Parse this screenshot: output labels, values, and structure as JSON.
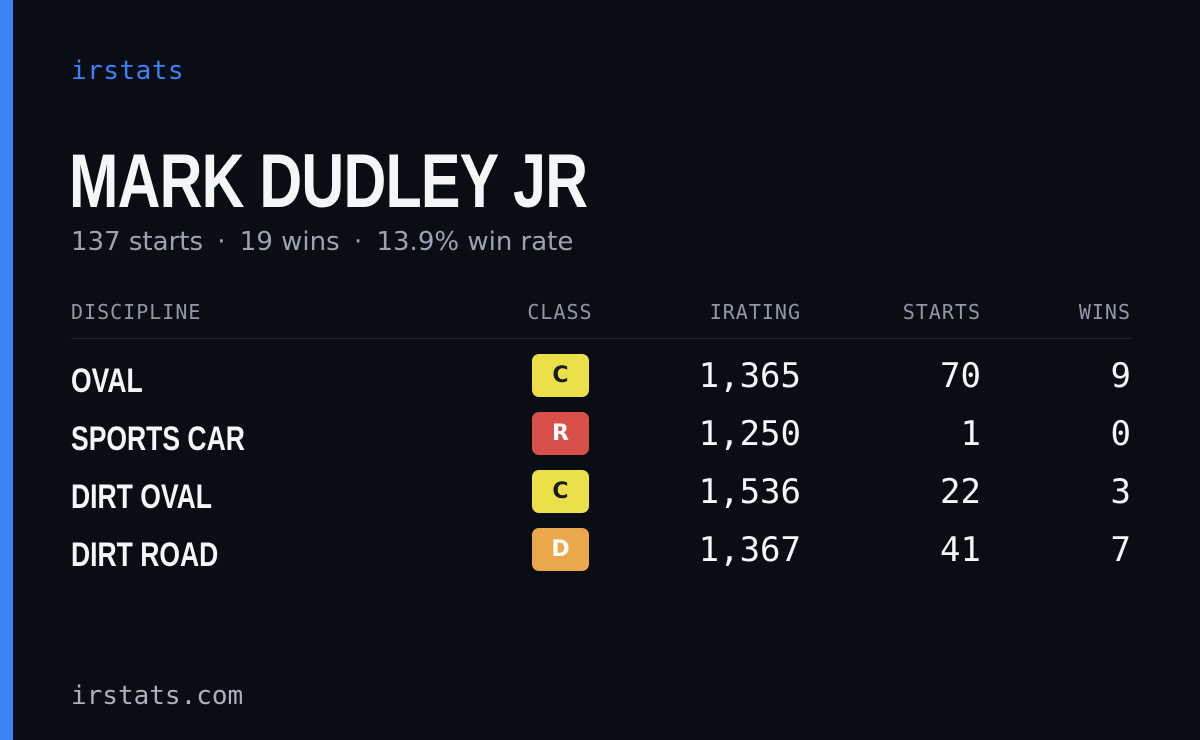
{
  "brand": "irstats",
  "driver": {
    "name": "MARK DUDLEY JR",
    "starts": "137 starts",
    "wins": "19 wins",
    "win_rate": "13.9% win rate",
    "separator": "·"
  },
  "table": {
    "headers": {
      "discipline": "DISCIPLINE",
      "class": "CLASS",
      "irating": "IRATING",
      "starts": "STARTS",
      "wins": "WINS"
    },
    "rows": [
      {
        "discipline": "OVAL",
        "class": "C",
        "class_color": "#ece04a",
        "class_text_color": "#1b1b1b",
        "irating": "1,365",
        "starts": "70",
        "wins": "9"
      },
      {
        "discipline": "SPORTS CAR",
        "class": "R",
        "class_color": "#d9504a",
        "class_text_color": "#ffffff",
        "irating": "1,250",
        "starts": "1",
        "wins": "0"
      },
      {
        "discipline": "DIRT OVAL",
        "class": "C",
        "class_color": "#ece04a",
        "class_text_color": "#1b1b1b",
        "irating": "1,536",
        "starts": "22",
        "wins": "3"
      },
      {
        "discipline": "DIRT ROAD",
        "class": "D",
        "class_color": "#eba84b",
        "class_text_color": "#ffffff",
        "irating": "1,367",
        "starts": "41",
        "wins": "7"
      }
    ]
  },
  "footer": "irstats.com",
  "colors": {
    "background": "#0b0d14",
    "accent": "#3b82f6"
  }
}
